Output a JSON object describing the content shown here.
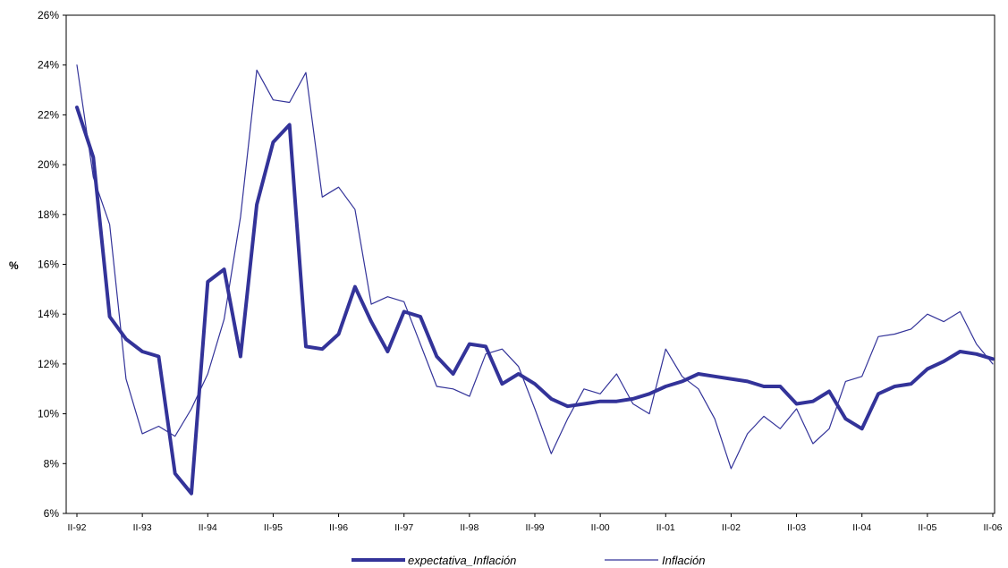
{
  "chart_data": {
    "type": "line",
    "ylabel": "%",
    "ylim": [
      6,
      26
    ],
    "yticks": [
      "6%",
      "8%",
      "10%",
      "12%",
      "14%",
      "16%",
      "18%",
      "20%",
      "22%",
      "24%",
      "26%"
    ],
    "xticks": [
      "II-92",
      "II-93",
      "II-94",
      "II-95",
      "II-96",
      "II-97",
      "II-98",
      "II-99",
      "II-00",
      "II-01",
      "II-02",
      "II-03",
      "II-04",
      "II-05",
      "II-06"
    ],
    "x_start": "II-92",
    "legend_position": "bottom",
    "grid": false,
    "series": [
      {
        "name": "expectativa_Inflación",
        "color": "#333399",
        "line_width": "thick",
        "values": [
          22.3,
          20.3,
          13.9,
          13.0,
          12.5,
          12.3,
          7.6,
          6.8,
          15.3,
          15.8,
          12.3,
          18.4,
          20.9,
          21.6,
          12.7,
          12.6,
          13.2,
          15.1,
          13.7,
          12.5,
          14.1,
          13.9,
          12.3,
          11.6,
          12.8,
          12.7,
          11.2,
          11.6,
          11.2,
          10.6,
          10.3,
          10.4,
          10.5,
          10.5,
          10.6,
          10.8,
          11.1,
          11.3,
          11.6,
          11.5,
          11.4,
          11.3,
          11.1,
          11.1,
          10.4,
          10.5,
          10.9,
          9.8,
          9.4,
          10.8,
          11.1,
          11.2,
          11.8,
          12.1,
          12.5,
          12.4,
          12.2
        ]
      },
      {
        "name": "Inflación",
        "color": "#333399",
        "line_width": "thin",
        "values": [
          24.0,
          19.5,
          17.6,
          11.4,
          9.2,
          9.5,
          9.1,
          10.2,
          11.6,
          13.8,
          17.9,
          23.8,
          22.6,
          22.5,
          23.7,
          18.7,
          19.1,
          18.2,
          14.4,
          14.7,
          14.5,
          12.8,
          11.1,
          11.0,
          10.7,
          12.4,
          12.6,
          11.9,
          10.2,
          8.4,
          9.8,
          11.0,
          10.8,
          11.6,
          10.4,
          10.0,
          12.6,
          11.5,
          11.0,
          9.8,
          7.8,
          9.2,
          9.9,
          9.4,
          10.2,
          8.8,
          9.4,
          11.3,
          11.5,
          13.1,
          13.2,
          13.4,
          14.0,
          13.7,
          14.1,
          12.8,
          12.0
        ]
      }
    ]
  }
}
